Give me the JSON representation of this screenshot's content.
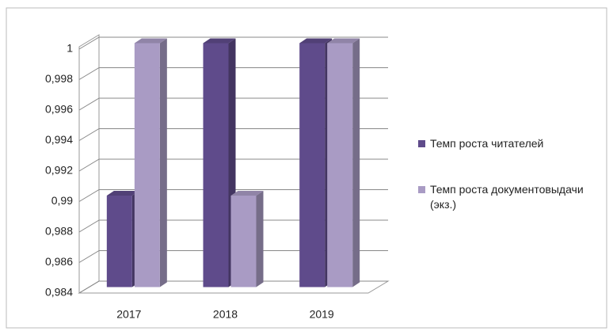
{
  "chart_data": {
    "type": "bar3d",
    "categories": [
      "2017",
      "2018",
      "2019"
    ],
    "series": [
      {
        "name": "Темп роста читателей",
        "color": "#5f4b8b",
        "values": [
          0.99,
          1,
          1
        ]
      },
      {
        "name": "Темп роста документовыдачи (экз.)",
        "color": "#a99bc4",
        "values": [
          1,
          0.99,
          1
        ]
      }
    ],
    "ylim": [
      0.984,
      1
    ],
    "yticks": [
      {
        "value": 0.984,
        "label": "0,984"
      },
      {
        "value": 0.986,
        "label": "0,986"
      },
      {
        "value": 0.988,
        "label": "0,988"
      },
      {
        "value": 0.99,
        "label": "0,99"
      },
      {
        "value": 0.992,
        "label": "0,992"
      },
      {
        "value": 0.994,
        "label": "0,994"
      },
      {
        "value": 0.996,
        "label": "0,996"
      },
      {
        "value": 0.998,
        "label": "0,998"
      },
      1
    ],
    "grid": true
  }
}
